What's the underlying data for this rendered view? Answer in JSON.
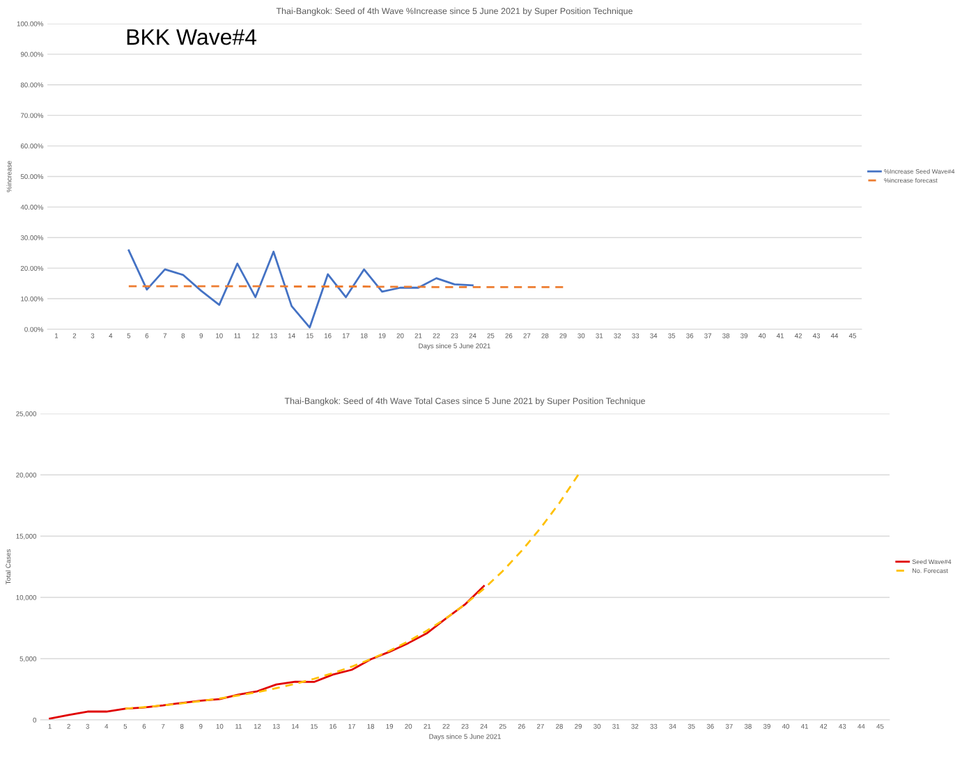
{
  "chart_data": [
    {
      "type": "line",
      "title": "Thai-Bangkok: Seed of 4th Wave %Increase since 5 June 2021 by Super Position Technique",
      "xlabel": "Days since 5 June 2021",
      "ylabel": "%increase",
      "annotations": [
        "BKK Wave#4"
      ],
      "categories": [
        "1",
        "2",
        "3",
        "4",
        "5",
        "6",
        "7",
        "8",
        "9",
        "10",
        "11",
        "12",
        "13",
        "14",
        "15",
        "16",
        "17",
        "18",
        "19",
        "20",
        "21",
        "22",
        "23",
        "24",
        "25",
        "26",
        "27",
        "28",
        "29",
        "30",
        "31",
        "32",
        "33",
        "34",
        "35",
        "36",
        "37",
        "38",
        "39",
        "40",
        "41",
        "42",
        "43",
        "44",
        "45"
      ],
      "series": [
        {
          "name": "%Increase Seed Wave#4",
          "color": "#4472c4",
          "line_style": "solid",
          "values": [
            null,
            null,
            null,
            null,
            25.8,
            13.0,
            19.6,
            17.8,
            12.6,
            8.0,
            21.5,
            10.5,
            25.4,
            7.6,
            0.6,
            18.0,
            10.5,
            19.6,
            12.3,
            13.6,
            13.6,
            16.7,
            14.7,
            14.4,
            null,
            null,
            null,
            null,
            null,
            null,
            null,
            null,
            null,
            null,
            null,
            null,
            null,
            null,
            null,
            null,
            null,
            null,
            null,
            null,
            null
          ]
        },
        {
          "name": "%increase forecast",
          "color": "#ed7d31",
          "line_style": "dashed",
          "values": [
            null,
            null,
            null,
            null,
            14.1,
            14.1,
            14.1,
            14.1,
            14.1,
            14.1,
            14.1,
            14.1,
            14.1,
            14.0,
            14.0,
            14.0,
            14.0,
            14.0,
            13.9,
            13.9,
            13.9,
            13.8,
            13.8,
            13.8,
            13.8,
            13.8,
            13.8,
            13.8,
            13.8,
            null,
            null,
            null,
            null,
            null,
            null,
            null,
            null,
            null,
            null,
            null,
            null,
            null,
            null,
            null,
            null
          ]
        }
      ],
      "ylim": [
        0,
        100
      ],
      "yticks": [
        {
          "value": 0,
          "label": "0.00%"
        },
        {
          "value": 10,
          "label": "10.00%"
        },
        {
          "value": 20,
          "label": "20.00%"
        },
        {
          "value": 30,
          "label": "30.00%"
        },
        {
          "value": 40,
          "label": "40.00%"
        },
        {
          "value": 50,
          "label": "50.00%"
        },
        {
          "value": 60,
          "label": "60.00%"
        },
        {
          "value": 70,
          "label": "70.00%"
        },
        {
          "value": 80,
          "label": "80.00%"
        },
        {
          "value": 90,
          "label": "90.00%"
        },
        {
          "value": 100,
          "label": "100.00%"
        }
      ],
      "grid": "y",
      "legend": "right"
    },
    {
      "type": "line",
      "title": "Thai-Bangkok: Seed of 4th Wave Total Cases since 5 June 2021 by Super Position Technique",
      "xlabel": "Days since 5 June 2021",
      "ylabel": "Total Cases",
      "categories": [
        "1",
        "2",
        "3",
        "4",
        "5",
        "6",
        "7",
        "8",
        "9",
        "10",
        "11",
        "12",
        "13",
        "14",
        "15",
        "16",
        "17",
        "18",
        "19",
        "20",
        "21",
        "22",
        "23",
        "24",
        "25",
        "26",
        "27",
        "28",
        "29",
        "30",
        "31",
        "32",
        "33",
        "34",
        "35",
        "36",
        "37",
        "38",
        "39",
        "40",
        "41",
        "42",
        "43",
        "44",
        "45"
      ],
      "series": [
        {
          "name": "Seed Wave#4",
          "color": "#e00000",
          "line_style": "solid",
          "values": [
            100,
            400,
            680,
            680,
            920,
            1020,
            1180,
            1390,
            1570,
            1700,
            2070,
            2340,
            2890,
            3120,
            3100,
            3700,
            4090,
            4940,
            5560,
            6270,
            7090,
            8290,
            9420,
            10920,
            null,
            null,
            null,
            null,
            null,
            null,
            null,
            null,
            null,
            null,
            null,
            null,
            null,
            null,
            null,
            null,
            null,
            null,
            null,
            null,
            null
          ]
        },
        {
          "name": "No. Forecast",
          "color": "#ffc000",
          "line_style": "dashed",
          "values": [
            null,
            null,
            null,
            null,
            920,
            1040,
            1190,
            1350,
            1540,
            1750,
            2000,
            2270,
            2590,
            2950,
            3350,
            3820,
            4350,
            4950,
            5640,
            6420,
            7300,
            8300,
            9430,
            10700,
            12150,
            13800,
            15650,
            17700,
            20000,
            null,
            null,
            null,
            null,
            null,
            null,
            null,
            null,
            null,
            null,
            null,
            null,
            null,
            null,
            null,
            null
          ]
        }
      ],
      "ylim": [
        0,
        25000
      ],
      "yticks": [
        {
          "value": 0,
          "label": "0"
        },
        {
          "value": 5000,
          "label": "5,000"
        },
        {
          "value": 10000,
          "label": "10,000"
        },
        {
          "value": 15000,
          "label": "15,000"
        },
        {
          "value": 20000,
          "label": "20,000"
        },
        {
          "value": 25000,
          "label": "25,000"
        }
      ],
      "grid": "y",
      "legend": "right"
    }
  ]
}
